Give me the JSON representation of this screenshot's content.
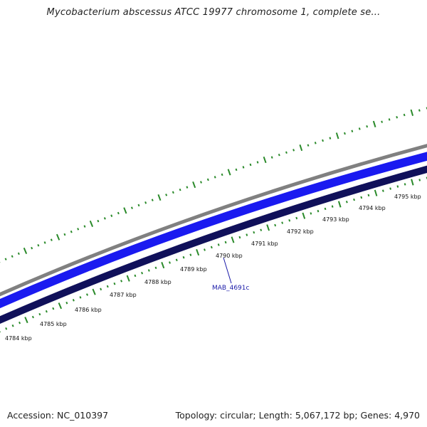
{
  "header": {
    "title": "Mycobacterium abscessus ATCC 19977 chromosome 1, complete se..."
  },
  "footer": {
    "accession": "Accession: NC_010397",
    "summary": "Topology: circular; Length: 5,067,172 bp; Genes: 4,970"
  },
  "map": {
    "ticks": [
      "4784 kbp",
      "4785 kbp",
      "4786 kbp",
      "4787 kbp",
      "4788 kbp",
      "4789 kbp",
      "4790 kbp",
      "4791 kbp",
      "4792 kbp",
      "4793 kbp",
      "4794 kbp",
      "4795 kbp"
    ],
    "gene_label": "MAB_4691c",
    "colors": {
      "tick": "#2a8a2a",
      "backbone": "#808080",
      "forward_track": "#1a1af0",
      "reverse_track": "#10105a",
      "gene_label": "#1a1aa8"
    }
  }
}
